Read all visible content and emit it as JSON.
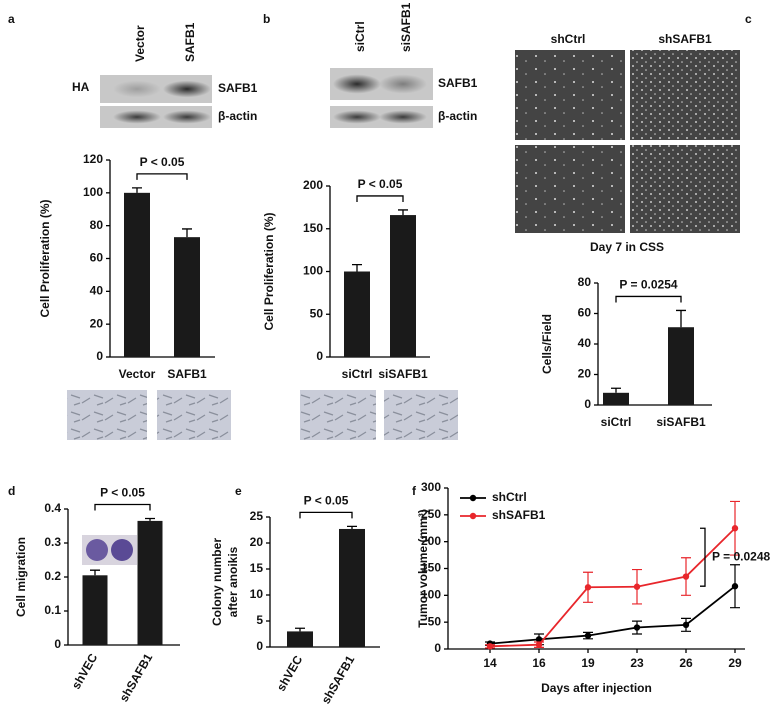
{
  "chart_data": [
    {
      "type": "bar",
      "panel": "a",
      "ylabel": "Cell Proliferation (%)",
      "categories": [
        "Vector",
        "SAFB1"
      ],
      "values": [
        100,
        73
      ],
      "errors": [
        3,
        5
      ],
      "color": "#1a1a1a",
      "ylim": [
        0,
        120
      ],
      "yticks": [
        0,
        20,
        40,
        60,
        80,
        100,
        120
      ],
      "annotation": "P < 0.05",
      "blot": {
        "lanes": [
          "Vector",
          "SAFB1"
        ],
        "bands": [
          "SAFB1",
          "β-actin"
        ],
        "side_label": "HA"
      }
    },
    {
      "type": "bar",
      "panel": "b",
      "ylabel": "Cell Proliferation (%)",
      "categories": [
        "siCtrl",
        "siSAFB1"
      ],
      "values": [
        100,
        166
      ],
      "errors": [
        8,
        6
      ],
      "color": "#1a1a1a",
      "ylim": [
        0,
        200
      ],
      "yticks": [
        0,
        50,
        100,
        150,
        200
      ],
      "annotation": "P < 0.05",
      "blot": {
        "lanes": [
          "siCtrl",
          "siSAFB1"
        ],
        "bands": [
          "SAFB1",
          "β-actin"
        ]
      }
    },
    {
      "type": "bar",
      "panel": "c",
      "ylabel": "Cells/Field",
      "categories": [
        "siCtrl",
        "siSAFB1"
      ],
      "values": [
        8,
        51
      ],
      "errors": [
        3,
        11
      ],
      "color": "#1a1a1a",
      "ylim": [
        0,
        80
      ],
      "yticks": [
        0,
        20,
        40,
        60,
        80
      ],
      "annotation": "P = 0.0254",
      "images": {
        "labels": [
          "shCtrl",
          "shSAFB1"
        ],
        "caption": "Day 7 in CSS"
      }
    },
    {
      "type": "bar",
      "panel": "d",
      "ylabel": "Cell migration",
      "categories": [
        "shVEC",
        "shSAFB1"
      ],
      "values": [
        0.205,
        0.365
      ],
      "errors": [
        0.015,
        0.007
      ],
      "color": "#1a1a1a",
      "ylim": [
        0,
        0.4
      ],
      "yticks": [
        0,
        0.1,
        0.2,
        0.3,
        0.4
      ],
      "annotation": "P < 0.05"
    },
    {
      "type": "bar",
      "panel": "e",
      "ylabel": [
        "Colony number",
        "after anoikis"
      ],
      "categories": [
        "shVEC",
        "shSAFB1"
      ],
      "values": [
        3,
        22.7
      ],
      "errors": [
        0.6,
        0.5
      ],
      "color": "#1a1a1a",
      "ylim": [
        0,
        25
      ],
      "yticks": [
        0,
        5,
        10,
        15,
        20,
        25
      ],
      "annotation": "P < 0.05"
    },
    {
      "type": "line",
      "panel": "f",
      "ylabel": "Tumor volume (mm³)",
      "xlabel": "Days after injection",
      "categories": [
        14,
        16,
        19,
        23,
        26,
        29
      ],
      "series": [
        {
          "name": "shCtrl",
          "color": "#000000",
          "values": [
            10,
            18,
            25,
            40,
            45,
            117
          ],
          "errors": [
            3,
            10,
            6,
            12,
            12,
            40
          ]
        },
        {
          "name": "shSAFB1",
          "color": "#e8262b",
          "values": [
            5,
            8,
            115,
            116,
            135,
            225
          ],
          "errors": [
            3,
            5,
            28,
            32,
            35,
            50
          ]
        }
      ],
      "ylim": [
        0,
        300
      ],
      "yticks": [
        0,
        50,
        100,
        150,
        200,
        250,
        300
      ],
      "annotation": "P = 0.0248",
      "legend": "upper left"
    }
  ]
}
